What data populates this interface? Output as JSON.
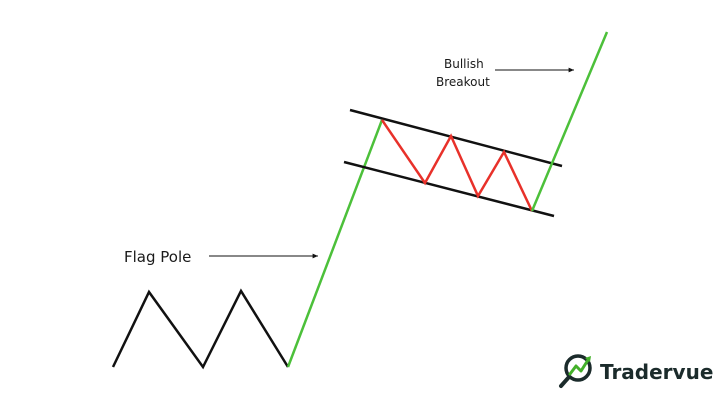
{
  "labels": {
    "flag_pole": "Flag Pole",
    "breakout_line1": "Bullish",
    "breakout_line2": "Breakout"
  },
  "brand": {
    "name": "Tradervue",
    "icon": "magnifier-trend-icon"
  },
  "colors": {
    "prior_trend": "#111111",
    "flag_pole": "#4cc03a",
    "flag_swings": "#e8312a",
    "channel": "#111111",
    "breakout": "#4cc03a",
    "brand_text": "#1b2b2b",
    "brand_accent": "#43b02a"
  }
}
